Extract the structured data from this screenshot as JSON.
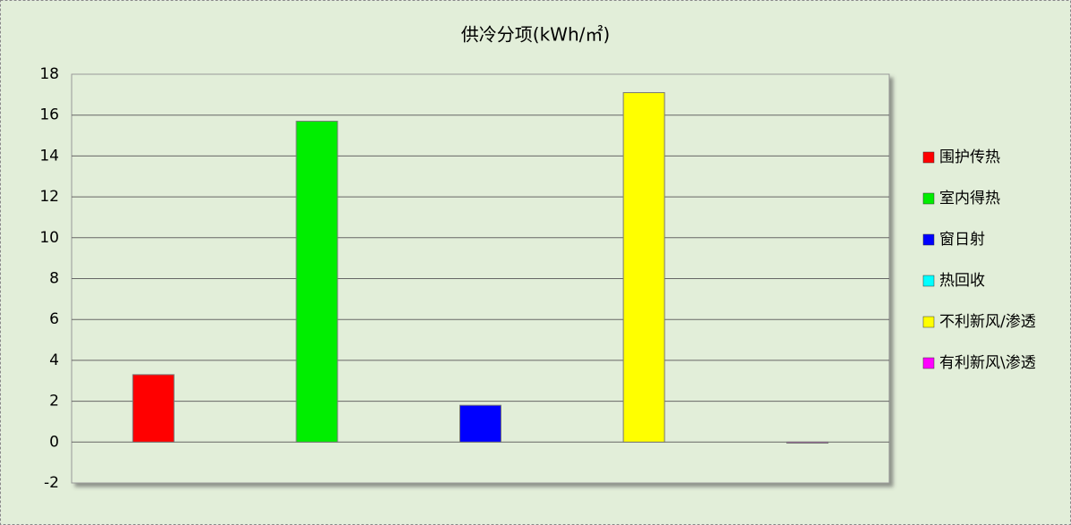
{
  "chart_data": {
    "type": "bar",
    "title": "供冷分项(kWh/㎡)",
    "categories": [
      "围护传热",
      "室内得热",
      "窗日射",
      "热回收",
      "不利新风/渗透",
      "有利新风\\渗透"
    ],
    "values": [
      3.3,
      15.7,
      1.8,
      null,
      17.1,
      -0.05
    ],
    "colors": [
      "#ff0000",
      "#00ee00",
      "#0000ff",
      "#00ffff",
      "#ffff00",
      "#ff00ff"
    ],
    "ylim": [
      -2,
      18
    ],
    "yticks": [
      -2,
      0,
      2,
      4,
      6,
      8,
      10,
      12,
      14,
      16,
      18
    ],
    "grid": true,
    "legend": "right"
  }
}
